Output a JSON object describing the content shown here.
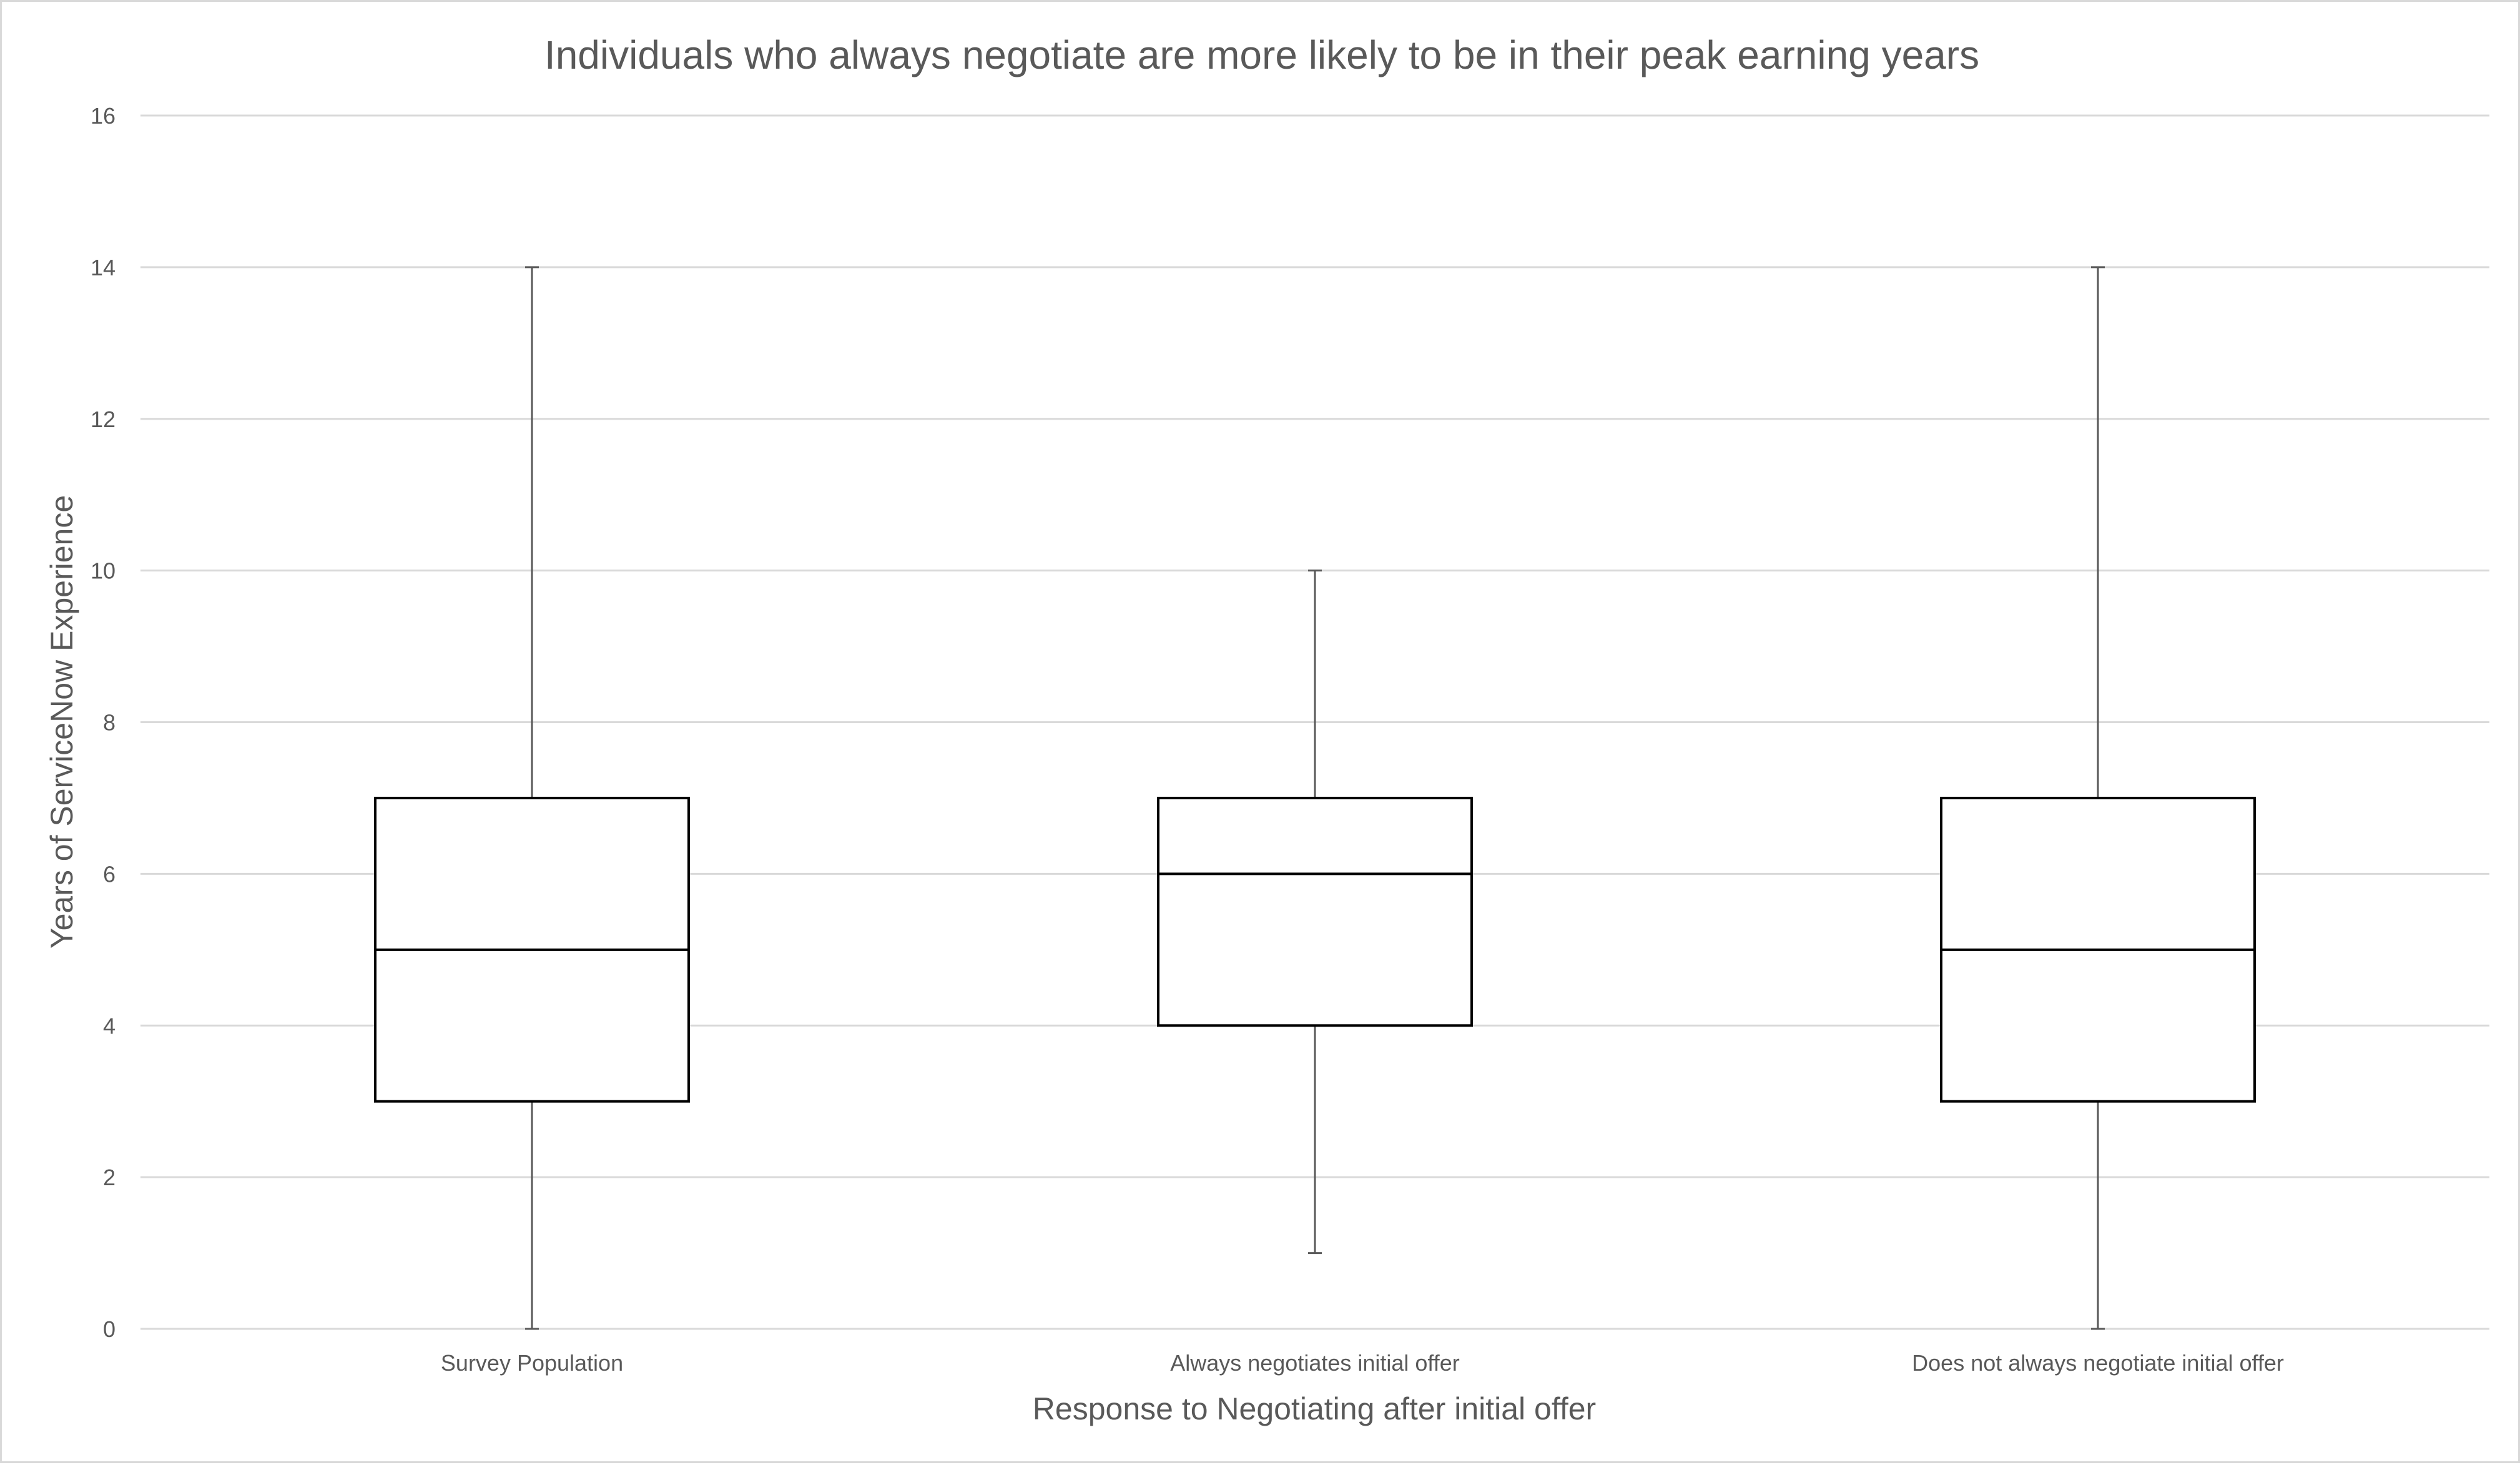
{
  "chart_data": {
    "type": "box",
    "title": "Individuals who always negotiate are more likely to be in their peak earning years",
    "xlabel": "Response to Negotiating after initial offer",
    "ylabel": "Years of ServiceNow Experience",
    "ylim": [
      0,
      16
    ],
    "yticks": [
      0,
      2,
      4,
      6,
      8,
      10,
      12,
      14,
      16
    ],
    "grid": true,
    "legend": "none",
    "categories": [
      "Survey Population",
      "Always negotiates initial offer",
      "Does not always negotiate initial offer"
    ],
    "boxes": [
      {
        "category": "Survey Population",
        "min": 0,
        "q1": 3,
        "median": 5,
        "q3": 7,
        "max": 14
      },
      {
        "category": "Always negotiates initial offer",
        "min": 1,
        "q1": 4,
        "median": 6,
        "q3": 7,
        "max": 10
      },
      {
        "category": "Does not always negotiate initial offer",
        "min": 0,
        "q1": 3,
        "median": 5,
        "q3": 7,
        "max": 14
      }
    ],
    "colors": {
      "box_fill": "#ffffff",
      "box_stroke": "#000000",
      "whisker": "#595959",
      "grid": "#d9d9d9",
      "text": "#595959"
    }
  }
}
